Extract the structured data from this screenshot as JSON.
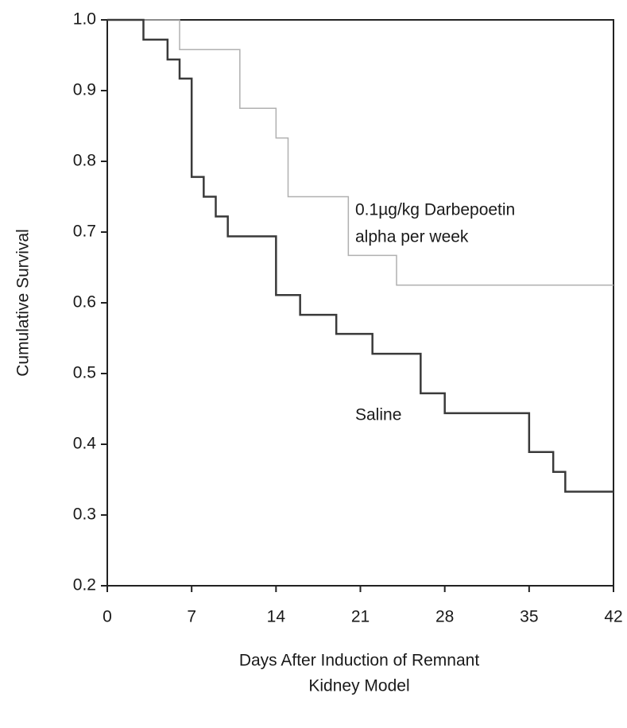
{
  "chart_data": {
    "type": "step",
    "ylabel": "Cumulative Survival",
    "xlabel": [
      "Days After Induction of Remnant",
      "Kidney Model"
    ],
    "xlim": [
      0,
      42
    ],
    "xticks": [
      0,
      7,
      14,
      21,
      28,
      35,
      42
    ],
    "ylim": [
      0.2,
      1.0
    ],
    "yticks": [
      0.2,
      0.3,
      0.4,
      0.5,
      0.6,
      0.7,
      0.8,
      0.9,
      {
        "value": 1.0,
        "label": "1.0"
      }
    ],
    "series": [
      {
        "color": "#b0b0b0",
        "x": [
          0,
          6,
          11,
          14,
          15,
          20,
          24,
          42
        ],
        "values": [
          1.0,
          0.958,
          0.875,
          0.833,
          0.75,
          0.667,
          0.625,
          0.625
        ]
      },
      {
        "color": "#3a3a3a",
        "x": [
          0,
          3,
          5,
          6,
          7,
          8,
          9,
          10,
          14,
          16,
          19,
          22,
          26,
          28,
          35,
          37,
          38,
          42
        ],
        "values": [
          1.0,
          0.972,
          0.944,
          0.917,
          0.778,
          0.75,
          0.722,
          0.694,
          0.611,
          0.583,
          0.556,
          0.528,
          0.472,
          0.444,
          0.389,
          0.361,
          0.333,
          0.333
        ]
      }
    ],
    "annotations": [
      "0.1µg/kg Darbepoetin",
      "alpha per week",
      "Saline"
    ]
  }
}
